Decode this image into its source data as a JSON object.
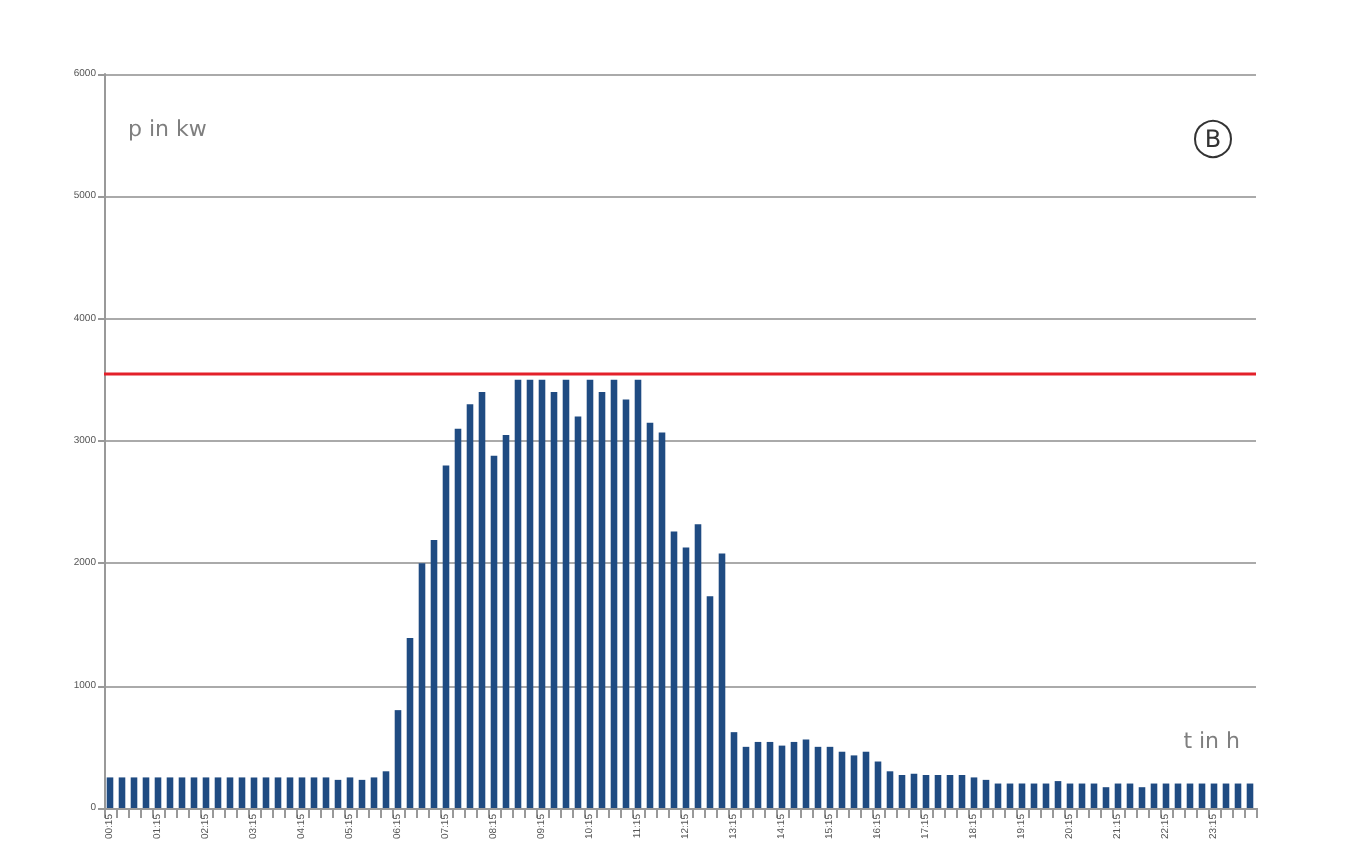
{
  "chart_data": {
    "type": "bar",
    "xlabel": "t in h",
    "ylabel": "p in kw",
    "annotations": [
      "B"
    ],
    "categories": [
      "00:15",
      null,
      null,
      null,
      "01:15",
      null,
      null,
      null,
      "02:15",
      null,
      null,
      null,
      "03:15",
      null,
      null,
      null,
      "04:15",
      null,
      null,
      null,
      "05:15",
      null,
      null,
      null,
      "06:15",
      null,
      null,
      null,
      "07:15",
      null,
      null,
      null,
      "08:15",
      null,
      null,
      null,
      "09:15",
      null,
      null,
      null,
      "10:15",
      null,
      null,
      null,
      "11:15",
      null,
      null,
      null,
      "12:15",
      null,
      null,
      null,
      "13:15",
      null,
      null,
      null,
      "14:15",
      null,
      null,
      null,
      "15:15",
      null,
      null,
      null,
      "16:15",
      null,
      null,
      null,
      "17:15",
      null,
      null,
      null,
      "18:15",
      null,
      null,
      null,
      "19:15",
      null,
      null,
      null,
      "20:15",
      null,
      null,
      null,
      "21:15",
      null,
      null,
      null,
      "22:15",
      null,
      null,
      null,
      "23:15",
      null,
      null,
      null
    ],
    "values": [
      250,
      250,
      250,
      250,
      250,
      250,
      250,
      250,
      250,
      250,
      250,
      250,
      250,
      250,
      250,
      250,
      250,
      250,
      250,
      230,
      250,
      230,
      250,
      300,
      800,
      1390,
      2000,
      2190,
      2800,
      3100,
      3300,
      3400,
      2880,
      3050,
      3500,
      3500,
      3500,
      3400,
      3500,
      3200,
      3500,
      3400,
      3500,
      3340,
      3500,
      3150,
      3070,
      2260,
      2130,
      2320,
      1730,
      2080,
      620,
      500,
      540,
      540,
      510,
      540,
      560,
      500,
      500,
      460,
      430,
      460,
      380,
      300,
      270,
      280,
      270,
      270,
      270,
      270,
      250,
      230,
      200,
      200,
      200,
      200,
      200,
      220,
      200,
      200,
      200,
      170,
      200,
      200,
      170,
      200,
      200,
      200,
      200,
      200,
      200,
      200,
      200,
      200
    ],
    "color": "#1f4b82",
    "ylim": [
      0,
      6000
    ],
    "yticks": [
      0,
      1000,
      2000,
      3000,
      4000,
      5000,
      6000
    ],
    "grid": "y",
    "ref_lines": [
      {
        "axis": "y",
        "value": 3550,
        "color": "#e3202a"
      }
    ]
  }
}
